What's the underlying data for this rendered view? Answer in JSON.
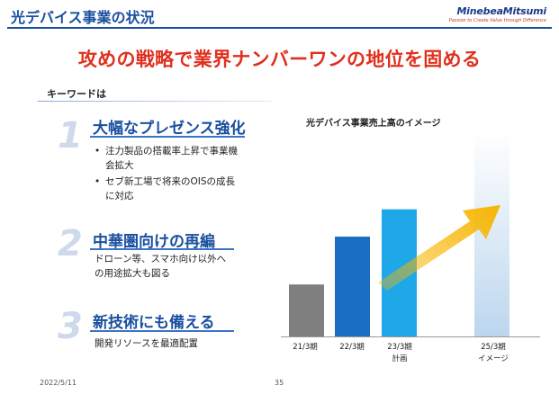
{
  "header": {
    "title": "光デバイス事業の状況",
    "logo_main": "MinebeaMitsumi",
    "logo_sub": "Passion to Create Value through Difference"
  },
  "headline": "攻めの戦略で業界ナンバーワンの地位を固める",
  "keywords_label": "キーワードは",
  "sections": [
    {
      "number": "1",
      "title": "大幅なプレゼンス強化",
      "bullets": [
        [
          "注力製品の搭載率上昇で事業機",
          "会拡大"
        ],
        [
          "セブ新工場で将来のOISの成長",
          "に対応"
        ]
      ]
    },
    {
      "number": "2",
      "title": "中華圏向けの再編",
      "lines": [
        "ドローン等、スマホ向け以外へ",
        "の用途拡大も図る"
      ]
    },
    {
      "number": "3",
      "title": "新技術にも備える",
      "lines": [
        "開発リソースを最適配置"
      ]
    }
  ],
  "chart_data": {
    "type": "bar",
    "title": "光デバイス事業売上高のイメージ",
    "categories": [
      "21/3期",
      "22/3期",
      "23/3期",
      "25/3期"
    ],
    "sublabels": [
      "",
      "",
      "計画",
      "イメージ"
    ],
    "values": [
      0.38,
      0.73,
      0.93,
      1.5
    ],
    "colors": [
      "#7f7f7f",
      "#1a6fc4",
      "#1fa8e8",
      "#c9ddf0"
    ],
    "arrow_color": "#f7b500"
  },
  "footer": {
    "date": "2022/5/11",
    "page": "35"
  }
}
